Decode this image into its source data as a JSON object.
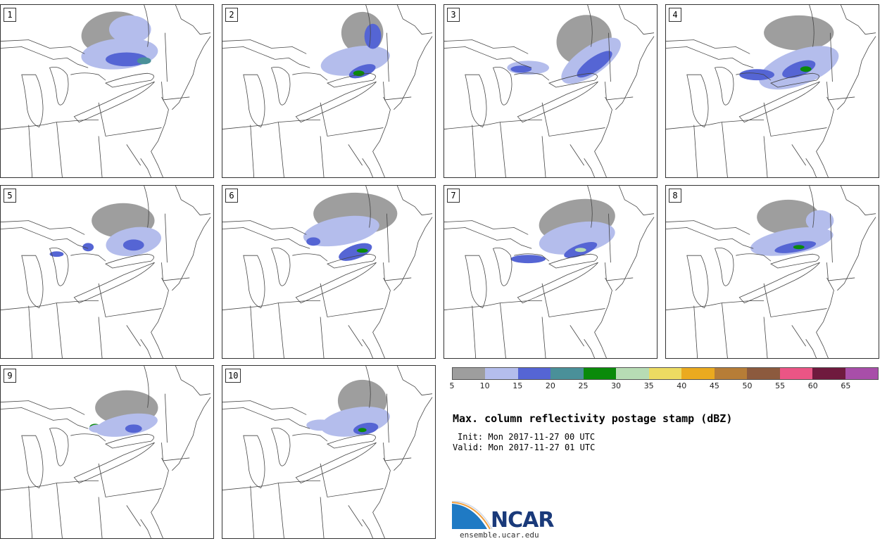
{
  "panels": [
    {
      "label": "1"
    },
    {
      "label": "2"
    },
    {
      "label": "3"
    },
    {
      "label": "4"
    },
    {
      "label": "5"
    },
    {
      "label": "6"
    },
    {
      "label": "7"
    },
    {
      "label": "8"
    },
    {
      "label": "9"
    },
    {
      "label": "10"
    }
  ],
  "colorbar": {
    "colors": [
      "#9e9e9e",
      "#b4bdec",
      "#5565d4",
      "#4a9099",
      "#0a8a0a",
      "#b7dcb4",
      "#ecdb62",
      "#eaaa1f",
      "#b67d37",
      "#8c5a3e",
      "#ea5585",
      "#6f1a3e",
      "#a84ea9"
    ],
    "labels": [
      "5",
      "10",
      "15",
      "20",
      "25",
      "30",
      "35",
      "40",
      "45",
      "50",
      "55",
      "60",
      "65"
    ]
  },
  "title": "Max. column reflectivity postage stamp (dBZ)",
  "init": "Init: Mon 2017-11-27 00 UTC",
  "valid": "Valid: Mon 2017-11-27 01 UTC",
  "logo": {
    "text": "NCAR",
    "url": "ensemble.ucar.edu"
  }
}
